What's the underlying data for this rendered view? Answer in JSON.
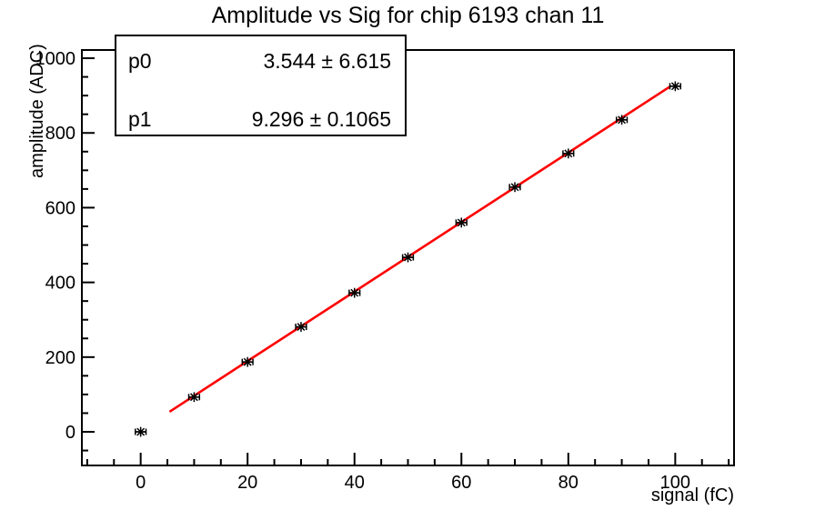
{
  "title": "Amplitude vs Sig for chip 6193 chan 11",
  "stats_box": {
    "rows": [
      {
        "param": "p0",
        "value": "3.544 ± 6.615"
      },
      {
        "param": "p1",
        "value": "9.296 ± 0.1065"
      }
    ]
  },
  "chart_data": {
    "type": "scatter",
    "title": "Amplitude vs Sig for chip 6193 chan 11",
    "xlabel": "signal (fC)",
    "ylabel": "amplitude (ADC)",
    "xlim": [
      -11,
      111
    ],
    "ylim": [
      -90,
      1022
    ],
    "grid": false,
    "x": [
      0,
      10,
      20,
      30,
      40,
      50,
      60,
      70,
      80,
      90,
      100
    ],
    "y": [
      0,
      93,
      187,
      281,
      372,
      467,
      560,
      655,
      745,
      835,
      925
    ],
    "xerr": 1,
    "x_ticks_major": [
      0,
      20,
      40,
      60,
      80,
      100
    ],
    "x_minor_step": 5,
    "y_ticks_major": [
      0,
      200,
      400,
      600,
      800,
      1000
    ],
    "y_minor_step": 50,
    "marker": "asterisk-with-error-bars",
    "marker_color": "#000000",
    "fit": {
      "type": "linear",
      "p0": 3.544,
      "p1": 9.296,
      "p0_err": 6.615,
      "p1_err": 0.1065,
      "x_start": 5.4,
      "x_end": 99,
      "color": "#ff0000"
    },
    "frame_color": "#000000",
    "background_color": "#ffffff"
  }
}
